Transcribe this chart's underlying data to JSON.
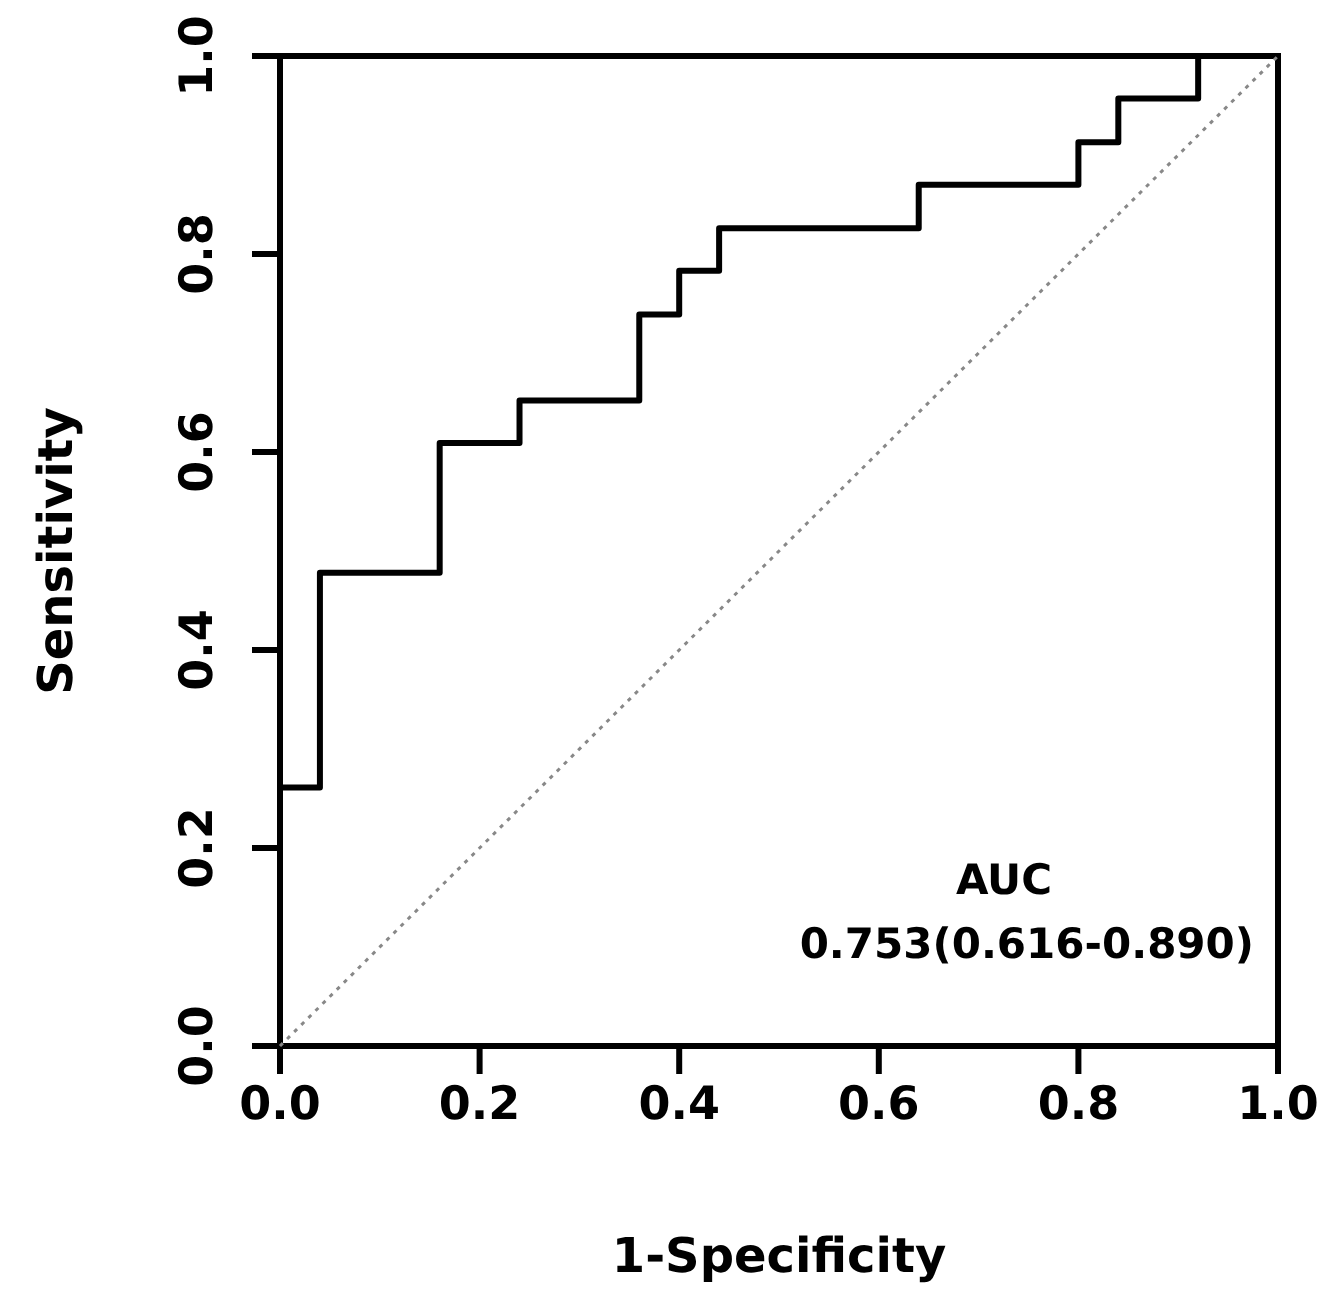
{
  "chart_data": {
    "type": "step",
    "xlabel": "1-Specificity",
    "ylabel": "Sensitivity",
    "xlim": [
      0,
      1
    ],
    "ylim": [
      0,
      1
    ],
    "xticks": [
      {
        "value": 0,
        "label": "0.0"
      },
      0.2,
      0.4,
      0.6,
      0.8,
      {
        "value": 1,
        "label": "1.0"
      }
    ],
    "yticks": [
      {
        "value": 0,
        "label": "0.0"
      },
      0.2,
      0.4,
      0.6,
      0.8,
      {
        "value": 1,
        "label": "1.0"
      }
    ],
    "grid": false,
    "series": [
      {
        "color": "#000000",
        "line_style": "solid",
        "x": [
          0,
          0,
          0.04,
          0.16,
          0.24,
          0.36,
          0.4,
          0.44,
          0.64,
          0.8,
          0.84,
          0.92,
          1.0
        ],
        "values": [
          0,
          0.261,
          0.478,
          0.609,
          0.652,
          0.739,
          0.783,
          0.826,
          0.87,
          0.913,
          0.957,
          1.0,
          1.0
        ]
      },
      {
        "type": "line",
        "color": "#888888",
        "line_style": "dotted",
        "x": [
          0,
          1
        ],
        "values": [
          0,
          1
        ]
      }
    ],
    "annotations": [
      "AUC",
      "0.753(0.616-0.890)"
    ]
  }
}
